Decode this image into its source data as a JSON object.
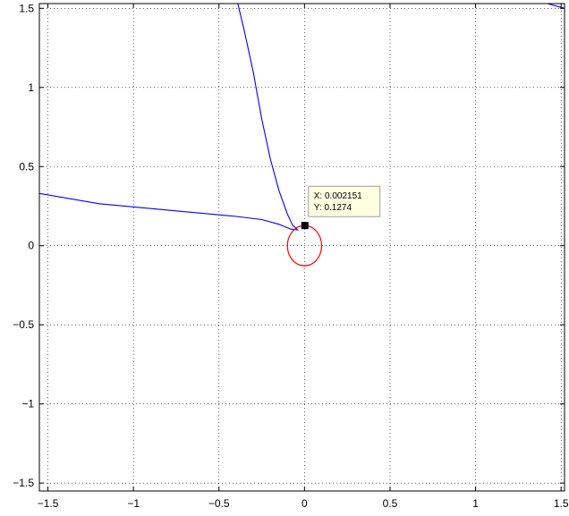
{
  "chart_data": {
    "type": "line",
    "title": "",
    "xlabel": "",
    "ylabel": "",
    "xlim": [
      -1.55,
      1.52
    ],
    "ylim": [
      -1.55,
      1.53
    ],
    "grid": true,
    "x_ticks": [
      -1.5,
      -1,
      -0.5,
      0,
      0.5,
      1,
      1.5
    ],
    "y_ticks": [
      -1.5,
      -1,
      -0.5,
      0,
      0.5,
      1,
      1.5
    ],
    "x_tick_labels": [
      "−1.5",
      "−1",
      "−0.5",
      "0",
      "0.5",
      "1",
      "1.5"
    ],
    "y_tick_labels": [
      "−1.5",
      "−1",
      "−0.5",
      "0",
      "0.5",
      "1",
      "1.5"
    ],
    "series": [
      {
        "color": "#0000ff",
        "points": [
          [
            -1.55,
            0.33
          ],
          [
            -1.2,
            0.265
          ],
          [
            -0.8,
            0.225
          ],
          [
            -0.4,
            0.185
          ],
          [
            -0.25,
            0.165
          ],
          [
            -0.15,
            0.135
          ],
          [
            -0.08,
            0.105
          ],
          [
            -0.04,
            0.1
          ],
          [
            -0.07,
            0.13
          ],
          [
            -0.1,
            0.2
          ],
          [
            -0.15,
            0.35
          ],
          [
            -0.2,
            0.55
          ],
          [
            -0.25,
            0.8
          ],
          [
            -0.3,
            1.1
          ],
          [
            -0.35,
            1.35
          ],
          [
            -0.39,
            1.53
          ]
        ]
      },
      {
        "color": "#0000ff",
        "points": [
          [
            1.42,
            1.53
          ],
          [
            1.52,
            1.5
          ]
        ]
      },
      {
        "color": "#ff0000",
        "shape": "ellipse",
        "center": [
          0.0,
          0.0
        ],
        "radius_x": 0.1,
        "radius_y": 0.127
      }
    ],
    "datatip": {
      "x": 0.002151,
      "y": 0.1274,
      "x_text": "X: 0.002151",
      "y_text": "Y: 0.1274"
    }
  }
}
